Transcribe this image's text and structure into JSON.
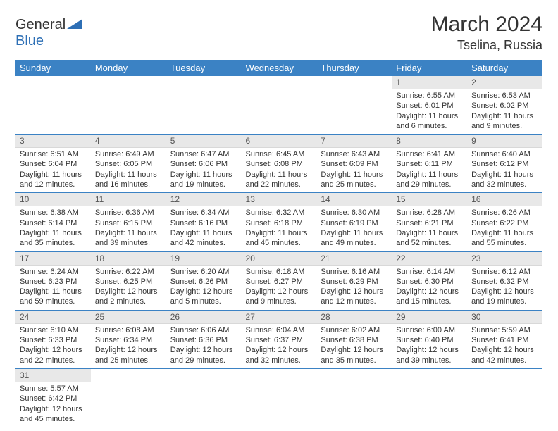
{
  "logo": {
    "text1": "General",
    "text2": "Blue"
  },
  "title": "March 2024",
  "subtitle": "Tselina, Russia",
  "colors": {
    "header_bg": "#3b82c4",
    "header_fg": "#ffffff",
    "daynum_bg": "#e8e8e8",
    "row_divider": "#3b82c4",
    "logo_accent": "#2d6fb5"
  },
  "weekdays": [
    "Sunday",
    "Monday",
    "Tuesday",
    "Wednesday",
    "Thursday",
    "Friday",
    "Saturday"
  ],
  "weeks": [
    [
      {
        "empty": true
      },
      {
        "empty": true
      },
      {
        "empty": true
      },
      {
        "empty": true
      },
      {
        "empty": true
      },
      {
        "n": "1",
        "sunrise": "6:55 AM",
        "sunset": "6:01 PM",
        "day_h": "11",
        "day_m": "6"
      },
      {
        "n": "2",
        "sunrise": "6:53 AM",
        "sunset": "6:02 PM",
        "day_h": "11",
        "day_m": "9"
      }
    ],
    [
      {
        "n": "3",
        "sunrise": "6:51 AM",
        "sunset": "6:04 PM",
        "day_h": "11",
        "day_m": "12"
      },
      {
        "n": "4",
        "sunrise": "6:49 AM",
        "sunset": "6:05 PM",
        "day_h": "11",
        "day_m": "16"
      },
      {
        "n": "5",
        "sunrise": "6:47 AM",
        "sunset": "6:06 PM",
        "day_h": "11",
        "day_m": "19"
      },
      {
        "n": "6",
        "sunrise": "6:45 AM",
        "sunset": "6:08 PM",
        "day_h": "11",
        "day_m": "22"
      },
      {
        "n": "7",
        "sunrise": "6:43 AM",
        "sunset": "6:09 PM",
        "day_h": "11",
        "day_m": "25"
      },
      {
        "n": "8",
        "sunrise": "6:41 AM",
        "sunset": "6:11 PM",
        "day_h": "11",
        "day_m": "29"
      },
      {
        "n": "9",
        "sunrise": "6:40 AM",
        "sunset": "6:12 PM",
        "day_h": "11",
        "day_m": "32"
      }
    ],
    [
      {
        "n": "10",
        "sunrise": "6:38 AM",
        "sunset": "6:14 PM",
        "day_h": "11",
        "day_m": "35"
      },
      {
        "n": "11",
        "sunrise": "6:36 AM",
        "sunset": "6:15 PM",
        "day_h": "11",
        "day_m": "39"
      },
      {
        "n": "12",
        "sunrise": "6:34 AM",
        "sunset": "6:16 PM",
        "day_h": "11",
        "day_m": "42"
      },
      {
        "n": "13",
        "sunrise": "6:32 AM",
        "sunset": "6:18 PM",
        "day_h": "11",
        "day_m": "45"
      },
      {
        "n": "14",
        "sunrise": "6:30 AM",
        "sunset": "6:19 PM",
        "day_h": "11",
        "day_m": "49"
      },
      {
        "n": "15",
        "sunrise": "6:28 AM",
        "sunset": "6:21 PM",
        "day_h": "11",
        "day_m": "52"
      },
      {
        "n": "16",
        "sunrise": "6:26 AM",
        "sunset": "6:22 PM",
        "day_h": "11",
        "day_m": "55"
      }
    ],
    [
      {
        "n": "17",
        "sunrise": "6:24 AM",
        "sunset": "6:23 PM",
        "day_h": "11",
        "day_m": "59"
      },
      {
        "n": "18",
        "sunrise": "6:22 AM",
        "sunset": "6:25 PM",
        "day_h": "12",
        "day_m": "2"
      },
      {
        "n": "19",
        "sunrise": "6:20 AM",
        "sunset": "6:26 PM",
        "day_h": "12",
        "day_m": "5"
      },
      {
        "n": "20",
        "sunrise": "6:18 AM",
        "sunset": "6:27 PM",
        "day_h": "12",
        "day_m": "9"
      },
      {
        "n": "21",
        "sunrise": "6:16 AM",
        "sunset": "6:29 PM",
        "day_h": "12",
        "day_m": "12"
      },
      {
        "n": "22",
        "sunrise": "6:14 AM",
        "sunset": "6:30 PM",
        "day_h": "12",
        "day_m": "15"
      },
      {
        "n": "23",
        "sunrise": "6:12 AM",
        "sunset": "6:32 PM",
        "day_h": "12",
        "day_m": "19"
      }
    ],
    [
      {
        "n": "24",
        "sunrise": "6:10 AM",
        "sunset": "6:33 PM",
        "day_h": "12",
        "day_m": "22"
      },
      {
        "n": "25",
        "sunrise": "6:08 AM",
        "sunset": "6:34 PM",
        "day_h": "12",
        "day_m": "25"
      },
      {
        "n": "26",
        "sunrise": "6:06 AM",
        "sunset": "6:36 PM",
        "day_h": "12",
        "day_m": "29"
      },
      {
        "n": "27",
        "sunrise": "6:04 AM",
        "sunset": "6:37 PM",
        "day_h": "12",
        "day_m": "32"
      },
      {
        "n": "28",
        "sunrise": "6:02 AM",
        "sunset": "6:38 PM",
        "day_h": "12",
        "day_m": "35"
      },
      {
        "n": "29",
        "sunrise": "6:00 AM",
        "sunset": "6:40 PM",
        "day_h": "12",
        "day_m": "39"
      },
      {
        "n": "30",
        "sunrise": "5:59 AM",
        "sunset": "6:41 PM",
        "day_h": "12",
        "day_m": "42"
      }
    ],
    [
      {
        "n": "31",
        "sunrise": "5:57 AM",
        "sunset": "6:42 PM",
        "day_h": "12",
        "day_m": "45"
      },
      {
        "empty": true
      },
      {
        "empty": true
      },
      {
        "empty": true
      },
      {
        "empty": true
      },
      {
        "empty": true
      },
      {
        "empty": true
      }
    ]
  ],
  "labels": {
    "sunrise": "Sunrise:",
    "sunset": "Sunset:",
    "daylight": "Daylight:",
    "hours": "hours",
    "and": "and",
    "minutes": "minutes."
  }
}
